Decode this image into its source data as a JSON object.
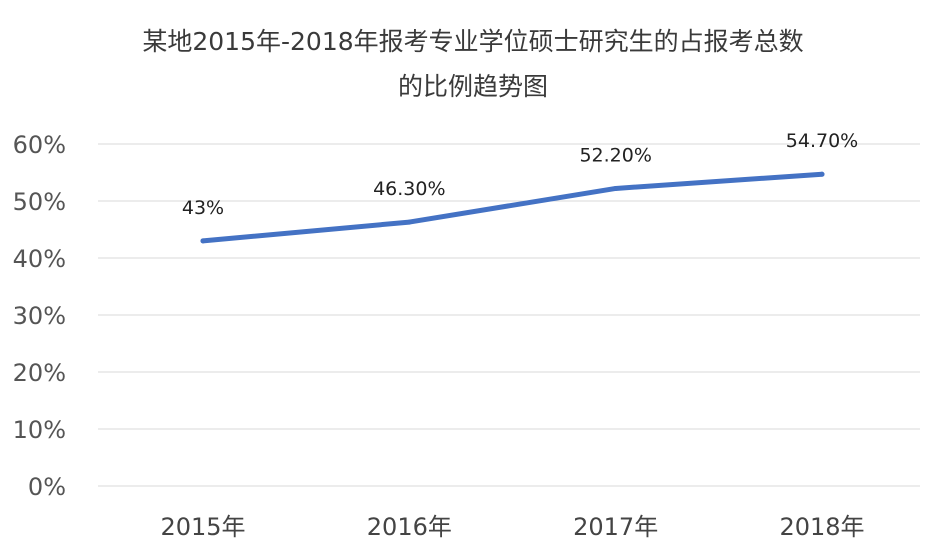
{
  "chart_data": {
    "type": "line",
    "title_lines": [
      "某地2015年-2018年报考专业学位硕士研究生的占报考总数",
      "的比例趋势图"
    ],
    "categories": [
      "2015年",
      "2016年",
      "2017年",
      "2018年"
    ],
    "series": [
      {
        "values": [
          43,
          46.3,
          52.2,
          54.7
        ],
        "data_labels": [
          "43%",
          "46.30%",
          "52.20%",
          "54.70%"
        ],
        "color": "#4472c4"
      }
    ],
    "y_ticks": [
      {
        "value": 0,
        "label": "0%"
      },
      {
        "value": 10,
        "label": "10%"
      },
      {
        "value": 20,
        "label": "20%"
      },
      {
        "value": 30,
        "label": "30%"
      },
      {
        "value": 40,
        "label": "40%"
      },
      {
        "value": 50,
        "label": "50%"
      },
      {
        "value": 60,
        "label": "60%"
      }
    ],
    "ylim": [
      0,
      60
    ],
    "xlabel": "",
    "ylabel": "",
    "grid": true,
    "legend": "none"
  }
}
